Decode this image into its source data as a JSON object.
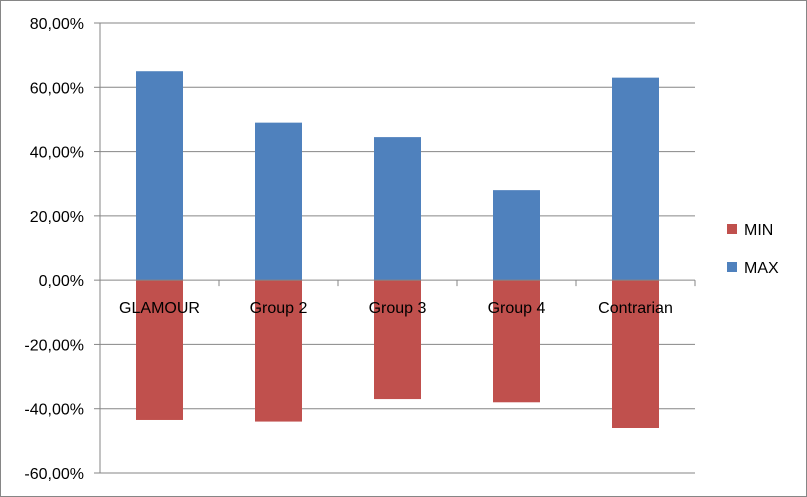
{
  "chart_data": {
    "type": "bar",
    "stacked": true,
    "categories": [
      "GLAMOUR",
      "Group 2",
      "Group 3",
      "Group 4",
      "Contrarian"
    ],
    "series": [
      {
        "name": "MIN",
        "color": "#C0504D",
        "values": [
          -43.5,
          -44.0,
          -37.0,
          -38.0,
          -46.0
        ]
      },
      {
        "name": "MAX",
        "color": "#4F81BD",
        "values": [
          65.0,
          49.0,
          44.5,
          28.0,
          63.0
        ]
      }
    ],
    "yticks": [
      80,
      60,
      40,
      20,
      0,
      -20,
      -40,
      -60
    ],
    "ytick_labels": [
      "80,00%",
      "60,00%",
      "40,00%",
      "20,00%",
      "0,00%",
      "-20,00%",
      "-40,00%",
      "-60,00%"
    ],
    "ylim": [
      -60,
      80
    ],
    "grid": true,
    "legend_position": "right"
  }
}
